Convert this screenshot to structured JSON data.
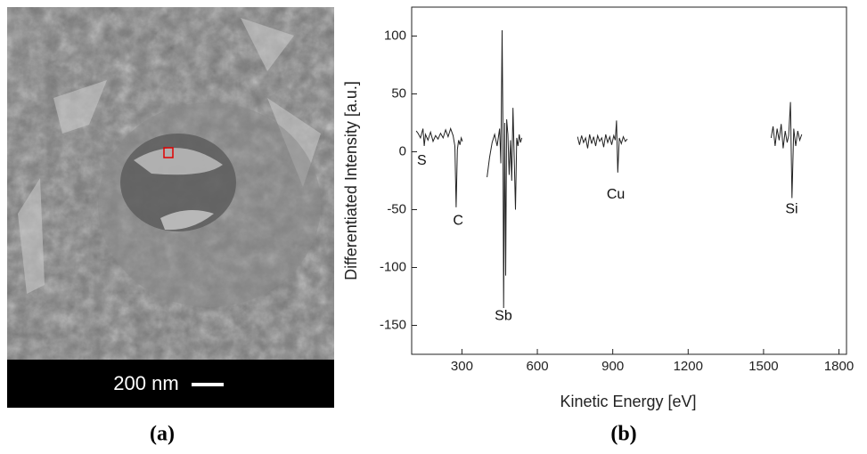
{
  "chart_data": {
    "type": "line",
    "xlabel": "Kinetic Energy [eV]",
    "ylabel": "Differentiated Intensity [a.u.]",
    "xlim": [
      100,
      1830
    ],
    "ylim": [
      -175,
      125
    ],
    "xticks": [
      300,
      600,
      900,
      1200,
      1500,
      1800
    ],
    "yticks": [
      -150,
      -100,
      -50,
      0,
      50,
      100
    ],
    "series": [
      {
        "color": "#222222",
        "x": [
          118,
          125,
          135,
          145,
          150,
          155,
          165,
          175,
          185,
          195,
          205,
          215,
          225,
          235,
          245,
          255,
          265,
          272,
          277,
          282,
          287,
          292,
          297,
          302,
          null,
          400,
          410,
          420,
          430,
          440,
          450,
          455,
          460,
          463,
          466,
          470,
          474,
          478,
          483,
          488,
          493,
          498,
          503,
          508,
          513,
          518,
          523,
          528,
          533,
          538,
          null,
          760,
          768,
          776,
          784,
          792,
          800,
          808,
          816,
          824,
          832,
          840,
          848,
          856,
          864,
          872,
          880,
          888,
          896,
          904,
          910,
          915,
          920,
          926,
          934,
          942,
          950,
          958,
          null,
          1530,
          1538,
          1546,
          1554,
          1562,
          1570,
          1578,
          1586,
          1594,
          1600,
          1607,
          1613,
          1620,
          1628,
          1636,
          1644,
          1652
        ],
        "values": [
          18,
          16,
          12,
          20,
          5,
          15,
          10,
          17,
          9,
          14,
          11,
          16,
          12,
          19,
          13,
          20,
          14,
          5,
          -48,
          2,
          10,
          6,
          12,
          9,
          null,
          -22,
          -5,
          8,
          15,
          5,
          20,
          -10,
          105,
          20,
          -135,
          25,
          -107,
          28,
          15,
          -20,
          10,
          -25,
          38,
          -5,
          -50,
          12,
          5,
          15,
          8,
          12,
          null,
          13,
          6,
          14,
          8,
          12,
          3,
          15,
          7,
          13,
          5,
          14,
          9,
          12,
          4,
          15,
          8,
          13,
          6,
          14,
          10,
          27,
          -18,
          12,
          7,
          13,
          9,
          11,
          null,
          12,
          22,
          5,
          20,
          10,
          24,
          3,
          18,
          8,
          14,
          43,
          -40,
          20,
          5,
          18,
          10,
          15
        ]
      }
    ],
    "annotations": [
      {
        "text": "S",
        "x": 140,
        "y": -8
      },
      {
        "text": "C",
        "x": 285,
        "y": -60
      },
      {
        "text": "Sb",
        "x": 465,
        "y": -142
      },
      {
        "text": "Cu",
        "x": 912,
        "y": -37
      },
      {
        "text": "Si",
        "x": 1612,
        "y": -50
      }
    ]
  },
  "image": {
    "scale_bar": "200 nm"
  },
  "panel_labels": [
    "(a)",
    "(b)"
  ]
}
